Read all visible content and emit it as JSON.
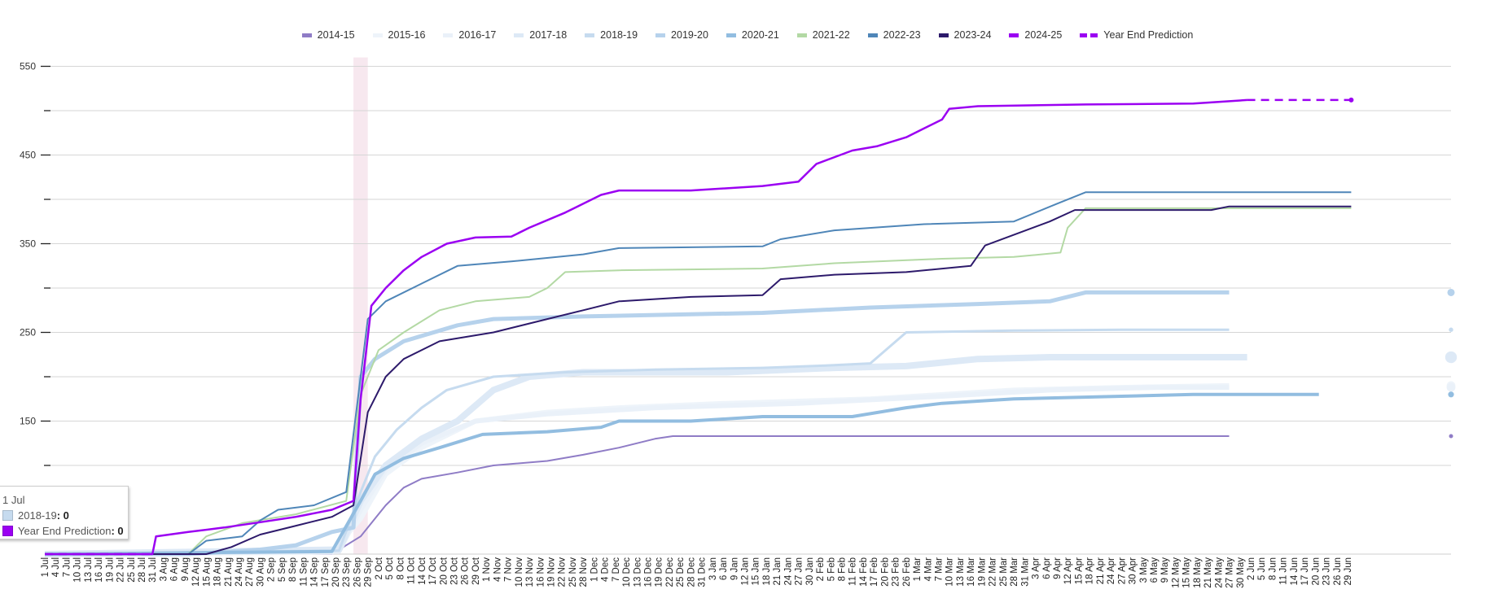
{
  "chart_data": {
    "type": "line",
    "title": "",
    "xlabel": "",
    "ylabel": "",
    "ylim": [
      0,
      560
    ],
    "y_ticks_labeled": [
      150,
      250,
      350,
      450,
      550
    ],
    "y_ticks_minor": [
      100,
      200,
      300,
      400,
      500
    ],
    "grid": true,
    "legend_position": "top",
    "x_tick_labels": [
      "1 Jul",
      "4 Jul",
      "7 Jul",
      "10 Jul",
      "13 Jul",
      "16 Jul",
      "19 Jul",
      "22 Jul",
      "25 Jul",
      "28 Jul",
      "31 Jul",
      "3 Aug",
      "6 Aug",
      "9 Aug",
      "12 Aug",
      "15 Aug",
      "18 Aug",
      "21 Aug",
      "24 Aug",
      "27 Aug",
      "30 Aug",
      "2 Sep",
      "5 Sep",
      "8 Sep",
      "11 Sep",
      "14 Sep",
      "17 Sep",
      "20 Sep",
      "23 Sep",
      "26 Sep",
      "29 Sep",
      "2 Oct",
      "5 Oct",
      "8 Oct",
      "11 Oct",
      "14 Oct",
      "17 Oct",
      "20 Oct",
      "23 Oct",
      "26 Oct",
      "29 Oct",
      "1 Nov",
      "4 Nov",
      "7 Nov",
      "10 Nov",
      "13 Nov",
      "16 Nov",
      "19 Nov",
      "22 Nov",
      "25 Nov",
      "28 Nov",
      "1 Dec",
      "4 Dec",
      "7 Dec",
      "10 Dec",
      "13 Dec",
      "16 Dec",
      "19 Dec",
      "22 Dec",
      "25 Dec",
      "28 Dec",
      "31 Dec",
      "3 Jan",
      "6 Jan",
      "9 Jan",
      "12 Jan",
      "15 Jan",
      "18 Jan",
      "21 Jan",
      "24 Jan",
      "27 Jan",
      "30 Jan",
      "2 Feb",
      "5 Feb",
      "8 Feb",
      "11 Feb",
      "14 Feb",
      "17 Feb",
      "20 Feb",
      "23 Feb",
      "26 Feb",
      "1 Mar",
      "4 Mar",
      "7 Mar",
      "10 Mar",
      "13 Mar",
      "16 Mar",
      "19 Mar",
      "22 Mar",
      "25 Mar",
      "28 Mar",
      "31 Mar",
      "3 Apr",
      "6 Apr",
      "9 Apr",
      "12 Apr",
      "15 Apr",
      "18 Apr",
      "21 Apr",
      "24 Apr",
      "27 Apr",
      "30 Apr",
      "3 May",
      "6 May",
      "9 May",
      "12 May",
      "15 May",
      "18 May",
      "21 May",
      "24 May",
      "27 May",
      "30 May",
      "2 Jun",
      "5 Jun",
      "8 Jun",
      "11 Jun",
      "14 Jun",
      "17 Jun",
      "20 Jun",
      "23 Jun",
      "26 Jun",
      "29 Jun"
    ],
    "x_units": "day index from 1 Jul (0) to 30 Jun (364)",
    "highlight_band": {
      "from_day": 86,
      "to_day": 90,
      "color": "#f7e8ef"
    },
    "series": [
      {
        "name": "2014-15",
        "color": "#8f7cc6",
        "width": 2,
        "dash": false,
        "points": [
          [
            0,
            0
          ],
          [
            80,
            0
          ],
          [
            88,
            20
          ],
          [
            95,
            55
          ],
          [
            100,
            75
          ],
          [
            105,
            85
          ],
          [
            115,
            92
          ],
          [
            125,
            100
          ],
          [
            140,
            105
          ],
          [
            150,
            112
          ],
          [
            160,
            120
          ],
          [
            170,
            130
          ],
          [
            175,
            133
          ],
          [
            200,
            133
          ],
          [
            250,
            133
          ],
          [
            300,
            133
          ],
          [
            330,
            133
          ]
        ]
      },
      {
        "name": "2015-16",
        "color": "#eef4fa",
        "width": 6,
        "dash": false,
        "points": [
          [
            0,
            0
          ],
          [
            80,
            2
          ],
          [
            88,
            40
          ],
          [
            95,
            90
          ],
          [
            105,
            120
          ],
          [
            120,
            150
          ],
          [
            140,
            160
          ],
          [
            160,
            165
          ],
          [
            190,
            170
          ],
          [
            230,
            175
          ],
          [
            270,
            185
          ],
          [
            300,
            188
          ],
          [
            330,
            190
          ]
        ]
      },
      {
        "name": "2016-17",
        "color": "#eaf1f9",
        "width": 6,
        "dash": false,
        "points": [
          [
            0,
            0
          ],
          [
            82,
            3
          ],
          [
            88,
            50
          ],
          [
            95,
            95
          ],
          [
            105,
            125
          ],
          [
            120,
            150
          ],
          [
            140,
            158
          ],
          [
            170,
            165
          ],
          [
            210,
            170
          ],
          [
            250,
            178
          ],
          [
            280,
            185
          ],
          [
            310,
            188
          ],
          [
            330,
            188
          ]
        ]
      },
      {
        "name": "2017-18",
        "color": "#dde9f6",
        "width": 8,
        "dash": false,
        "points": [
          [
            0,
            0
          ],
          [
            82,
            5
          ],
          [
            88,
            60
          ],
          [
            95,
            100
          ],
          [
            105,
            130
          ],
          [
            115,
            150
          ],
          [
            125,
            185
          ],
          [
            135,
            200
          ],
          [
            150,
            205
          ],
          [
            190,
            205
          ],
          [
            220,
            210
          ],
          [
            240,
            212
          ],
          [
            260,
            220
          ],
          [
            280,
            222
          ],
          [
            300,
            222
          ],
          [
            335,
            222
          ]
        ]
      },
      {
        "name": "2018-19",
        "color": "#c6dbef",
        "width": 3,
        "dash": false,
        "points": [
          [
            0,
            0
          ],
          [
            82,
            4
          ],
          [
            88,
            70
          ],
          [
            92,
            110
          ],
          [
            98,
            140
          ],
          [
            105,
            165
          ],
          [
            112,
            185
          ],
          [
            125,
            200
          ],
          [
            145,
            205
          ],
          [
            170,
            208
          ],
          [
            200,
            210
          ],
          [
            220,
            213
          ],
          [
            230,
            215
          ],
          [
            240,
            250
          ],
          [
            270,
            252
          ],
          [
            300,
            253
          ],
          [
            330,
            253
          ]
        ]
      },
      {
        "name": "2019-20",
        "color": "#b6d2ec",
        "width": 5,
        "dash": false,
        "points": [
          [
            0,
            0
          ],
          [
            40,
            0
          ],
          [
            60,
            5
          ],
          [
            70,
            10
          ],
          [
            80,
            25
          ],
          [
            86,
            30
          ],
          [
            88,
            200
          ],
          [
            92,
            220
          ],
          [
            100,
            240
          ],
          [
            115,
            258
          ],
          [
            125,
            265
          ],
          [
            150,
            268
          ],
          [
            200,
            272
          ],
          [
            230,
            278
          ],
          [
            260,
            282
          ],
          [
            280,
            285
          ],
          [
            290,
            295
          ],
          [
            330,
            295
          ]
        ]
      },
      {
        "name": "2020-21",
        "color": "#92bde0",
        "width": 4,
        "dash": false,
        "points": [
          [
            0,
            0
          ],
          [
            80,
            3
          ],
          [
            88,
            60
          ],
          [
            92,
            90
          ],
          [
            100,
            108
          ],
          [
            110,
            120
          ],
          [
            122,
            135
          ],
          [
            140,
            138
          ],
          [
            155,
            143
          ],
          [
            160,
            150
          ],
          [
            180,
            150
          ],
          [
            200,
            155
          ],
          [
            225,
            155
          ],
          [
            240,
            165
          ],
          [
            250,
            170
          ],
          [
            270,
            175
          ],
          [
            300,
            178
          ],
          [
            320,
            180
          ],
          [
            355,
            180
          ]
        ]
      },
      {
        "name": "2021-22",
        "color": "#b3d9a4",
        "width": 2,
        "dash": false,
        "points": [
          [
            0,
            0
          ],
          [
            40,
            0
          ],
          [
            45,
            20
          ],
          [
            55,
            35
          ],
          [
            70,
            45
          ],
          [
            84,
            60
          ],
          [
            88,
            180
          ],
          [
            93,
            230
          ],
          [
            100,
            250
          ],
          [
            110,
            275
          ],
          [
            120,
            285
          ],
          [
            135,
            290
          ],
          [
            140,
            300
          ],
          [
            145,
            318
          ],
          [
            160,
            320
          ],
          [
            200,
            322
          ],
          [
            220,
            328
          ],
          [
            250,
            333
          ],
          [
            270,
            335
          ],
          [
            283,
            340
          ],
          [
            285,
            368
          ],
          [
            290,
            390
          ],
          [
            330,
            390
          ],
          [
            364,
            390
          ]
        ]
      },
      {
        "name": "2022-23",
        "color": "#4f86b8",
        "width": 2,
        "dash": false,
        "points": [
          [
            0,
            0
          ],
          [
            40,
            0
          ],
          [
            45,
            15
          ],
          [
            55,
            20
          ],
          [
            60,
            38
          ],
          [
            65,
            50
          ],
          [
            75,
            55
          ],
          [
            84,
            70
          ],
          [
            88,
            200
          ],
          [
            90,
            265
          ],
          [
            95,
            285
          ],
          [
            105,
            305
          ],
          [
            115,
            325
          ],
          [
            130,
            330
          ],
          [
            150,
            338
          ],
          [
            160,
            345
          ],
          [
            200,
            347
          ],
          [
            205,
            355
          ],
          [
            220,
            365
          ],
          [
            245,
            372
          ],
          [
            270,
            375
          ],
          [
            282,
            395
          ],
          [
            290,
            408
          ],
          [
            330,
            408
          ],
          [
            364,
            408
          ]
        ]
      },
      {
        "name": "2023-24",
        "color": "#2d1a6b",
        "width": 2,
        "dash": false,
        "points": [
          [
            0,
            0
          ],
          [
            45,
            0
          ],
          [
            52,
            8
          ],
          [
            60,
            22
          ],
          [
            70,
            32
          ],
          [
            80,
            42
          ],
          [
            86,
            55
          ],
          [
            90,
            160
          ],
          [
            95,
            200
          ],
          [
            100,
            220
          ],
          [
            110,
            240
          ],
          [
            125,
            250
          ],
          [
            140,
            265
          ],
          [
            150,
            275
          ],
          [
            160,
            285
          ],
          [
            180,
            290
          ],
          [
            200,
            292
          ],
          [
            205,
            310
          ],
          [
            220,
            315
          ],
          [
            240,
            318
          ],
          [
            258,
            325
          ],
          [
            262,
            348
          ],
          [
            270,
            360
          ],
          [
            280,
            375
          ],
          [
            287,
            388
          ],
          [
            300,
            388
          ],
          [
            325,
            388
          ],
          [
            330,
            392
          ],
          [
            364,
            392
          ]
        ]
      },
      {
        "name": "2024-25",
        "color": "#9b00f2",
        "width": 2.5,
        "dash": false,
        "points": [
          [
            0,
            0
          ],
          [
            30,
            0
          ],
          [
            31,
            20
          ],
          [
            40,
            25
          ],
          [
            50,
            30
          ],
          [
            60,
            36
          ],
          [
            70,
            42
          ],
          [
            80,
            50
          ],
          [
            86,
            60
          ],
          [
            88,
            175
          ],
          [
            91,
            280
          ],
          [
            95,
            300
          ],
          [
            100,
            320
          ],
          [
            105,
            335
          ],
          [
            112,
            350
          ],
          [
            120,
            357
          ],
          [
            130,
            358
          ],
          [
            135,
            368
          ],
          [
            145,
            385
          ],
          [
            150,
            395
          ],
          [
            155,
            405
          ],
          [
            160,
            410
          ],
          [
            180,
            410
          ],
          [
            200,
            415
          ],
          [
            210,
            420
          ],
          [
            215,
            440
          ],
          [
            225,
            455
          ],
          [
            232,
            460
          ],
          [
            240,
            470
          ],
          [
            245,
            480
          ],
          [
            250,
            490
          ],
          [
            252,
            502
          ],
          [
            260,
            505
          ],
          [
            290,
            507
          ],
          [
            320,
            508
          ],
          [
            335,
            512
          ]
        ]
      },
      {
        "name": "Year End Prediction",
        "color": "#9b00f2",
        "width": 2.5,
        "dash": true,
        "points": [
          [
            0,
            0
          ],
          [
            30,
            0
          ],
          [
            335,
            512
          ],
          [
            364,
            512
          ]
        ]
      }
    ]
  },
  "legend": {
    "items": [
      {
        "label": "2014-15",
        "color": "#8f7cc6",
        "dashed": false
      },
      {
        "label": "2015-16",
        "color": "#eef4fa",
        "dashed": false
      },
      {
        "label": "2016-17",
        "color": "#eaf1f9",
        "dashed": false
      },
      {
        "label": "2017-18",
        "color": "#dde9f6",
        "dashed": false
      },
      {
        "label": "2018-19",
        "color": "#c6dbef",
        "dashed": false
      },
      {
        "label": "2019-20",
        "color": "#b6d2ec",
        "dashed": false
      },
      {
        "label": "2020-21",
        "color": "#92bde0",
        "dashed": false
      },
      {
        "label": "2021-22",
        "color": "#b3d9a4",
        "dashed": false
      },
      {
        "label": "2022-23",
        "color": "#4f86b8",
        "dashed": false
      },
      {
        "label": "2023-24",
        "color": "#2d1a6b",
        "dashed": false
      },
      {
        "label": "2024-25",
        "color": "#9b00f2",
        "dashed": false
      },
      {
        "label": "Year End Prediction",
        "color": "#9b00f2",
        "dashed": true
      }
    ]
  },
  "tooltip": {
    "date": "1 Jul",
    "rows": [
      {
        "label": "2018-19",
        "value": "0",
        "color": "#c6dbef"
      },
      {
        "label": "Year End Prediction",
        "value": "0",
        "color": "#9b00f2"
      }
    ]
  }
}
